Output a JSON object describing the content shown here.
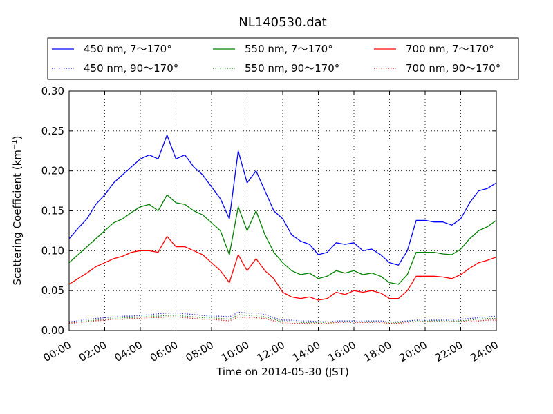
{
  "chart_data": {
    "type": "line",
    "title": "NL140530.dat",
    "xlabel": "Time on 2014-05-30 (JST)",
    "ylabel": "Scattering Coefficient (km",
    "ylabel_sup": "−1",
    "ylabel_close": ")",
    "xlim": [
      0,
      24
    ],
    "ylim": [
      0,
      0.3
    ],
    "x_unit": "hours",
    "x_ticks": [
      "00:00",
      "02:00",
      "04:00",
      "06:00",
      "08:00",
      "10:00",
      "12:00",
      "14:00",
      "16:00",
      "18:00",
      "20:00",
      "22:00",
      "24:00"
    ],
    "y_ticks": [
      "0.00",
      "0.05",
      "0.10",
      "0.15",
      "0.20",
      "0.25",
      "0.30"
    ],
    "grid": true,
    "legend_position": "top",
    "x": [
      0,
      0.5,
      1,
      1.5,
      2,
      2.5,
      3,
      3.5,
      4,
      4.5,
      5,
      5.5,
      6,
      6.5,
      7,
      7.5,
      8,
      8.5,
      9,
      9.5,
      10,
      10.5,
      11,
      11.5,
      12,
      12.5,
      13,
      13.5,
      14,
      14.5,
      15,
      15.5,
      16,
      16.5,
      17,
      17.5,
      18,
      18.5,
      19,
      19.5,
      20,
      20.5,
      21,
      21.5,
      22,
      22.5,
      23,
      23.5,
      24
    ],
    "series": [
      {
        "name": "450 nm, 7～170°",
        "color": "#0000ff",
        "dash": "solid",
        "values": [
          0.115,
          0.128,
          0.14,
          0.158,
          0.17,
          0.185,
          0.195,
          0.205,
          0.215,
          0.22,
          0.215,
          0.245,
          0.215,
          0.22,
          0.205,
          0.195,
          0.18,
          0.165,
          0.14,
          0.225,
          0.185,
          0.2,
          0.175,
          0.15,
          0.14,
          0.12,
          0.112,
          0.108,
          0.095,
          0.098,
          0.11,
          0.108,
          0.11,
          0.1,
          0.102,
          0.095,
          0.085,
          0.082,
          0.1,
          0.138,
          0.138,
          0.136,
          0.136,
          0.132,
          0.14,
          0.16,
          0.175,
          0.178,
          0.185
        ]
      },
      {
        "name": "550 nm, 7～170°",
        "color": "#008000",
        "dash": "solid",
        "values": [
          0.085,
          0.095,
          0.105,
          0.115,
          0.125,
          0.135,
          0.14,
          0.148,
          0.155,
          0.158,
          0.15,
          0.17,
          0.16,
          0.158,
          0.15,
          0.145,
          0.135,
          0.125,
          0.095,
          0.155,
          0.125,
          0.15,
          0.12,
          0.098,
          0.085,
          0.075,
          0.07,
          0.072,
          0.065,
          0.068,
          0.075,
          0.072,
          0.075,
          0.07,
          0.072,
          0.068,
          0.06,
          0.058,
          0.07,
          0.098,
          0.098,
          0.098,
          0.096,
          0.095,
          0.102,
          0.115,
          0.125,
          0.13,
          0.138
        ]
      },
      {
        "name": "700 nm, 7～170°",
        "color": "#ff0000",
        "dash": "solid",
        "values": [
          0.058,
          0.065,
          0.072,
          0.08,
          0.085,
          0.09,
          0.093,
          0.098,
          0.1,
          0.1,
          0.098,
          0.118,
          0.105,
          0.105,
          0.1,
          0.095,
          0.085,
          0.075,
          0.06,
          0.095,
          0.075,
          0.09,
          0.075,
          0.065,
          0.048,
          0.042,
          0.04,
          0.042,
          0.038,
          0.04,
          0.048,
          0.045,
          0.05,
          0.048,
          0.05,
          0.047,
          0.04,
          0.04,
          0.05,
          0.068,
          0.068,
          0.068,
          0.067,
          0.065,
          0.07,
          0.078,
          0.085,
          0.088,
          0.092
        ]
      },
      {
        "name": "450 nm, 90～170°",
        "color": "#0000ff",
        "dash": "dotted",
        "values": [
          0.011,
          0.012,
          0.014,
          0.015,
          0.016,
          0.017,
          0.018,
          0.018,
          0.019,
          0.02,
          0.021,
          0.022,
          0.022,
          0.021,
          0.02,
          0.019,
          0.018,
          0.018,
          0.017,
          0.023,
          0.022,
          0.022,
          0.02,
          0.016,
          0.013,
          0.013,
          0.012,
          0.012,
          0.011,
          0.011,
          0.012,
          0.012,
          0.012,
          0.012,
          0.012,
          0.012,
          0.011,
          0.011,
          0.012,
          0.013,
          0.013,
          0.013,
          0.013,
          0.013,
          0.014,
          0.015,
          0.016,
          0.017,
          0.018
        ]
      },
      {
        "name": "550 nm, 90～170°",
        "color": "#008000",
        "dash": "dotted",
        "values": [
          0.01,
          0.011,
          0.012,
          0.013,
          0.014,
          0.015,
          0.016,
          0.016,
          0.017,
          0.018,
          0.018,
          0.019,
          0.019,
          0.018,
          0.017,
          0.016,
          0.016,
          0.015,
          0.014,
          0.02,
          0.019,
          0.019,
          0.017,
          0.014,
          0.011,
          0.011,
          0.01,
          0.01,
          0.01,
          0.01,
          0.011,
          0.011,
          0.011,
          0.011,
          0.011,
          0.011,
          0.01,
          0.01,
          0.011,
          0.012,
          0.012,
          0.012,
          0.012,
          0.012,
          0.012,
          0.013,
          0.014,
          0.015,
          0.015
        ]
      },
      {
        "name": "700 nm, 90～170°",
        "color": "#ff0000",
        "dash": "dotted",
        "values": [
          0.009,
          0.01,
          0.011,
          0.012,
          0.013,
          0.014,
          0.014,
          0.015,
          0.015,
          0.016,
          0.016,
          0.017,
          0.017,
          0.016,
          0.015,
          0.014,
          0.014,
          0.013,
          0.012,
          0.017,
          0.016,
          0.016,
          0.015,
          0.012,
          0.01,
          0.009,
          0.009,
          0.009,
          0.009,
          0.009,
          0.01,
          0.01,
          0.01,
          0.01,
          0.01,
          0.01,
          0.009,
          0.009,
          0.01,
          0.011,
          0.011,
          0.011,
          0.011,
          0.011,
          0.011,
          0.012,
          0.012,
          0.013,
          0.013
        ]
      }
    ]
  }
}
